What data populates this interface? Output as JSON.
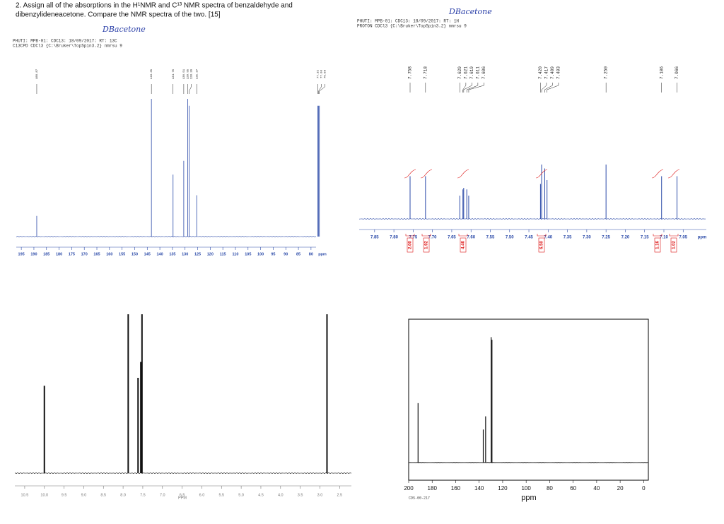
{
  "question": {
    "lines": [
      "2. Assign all of the absorptions in the H¹NMR and C¹³ NMR spectra of benzaldehyde and",
      "dibenzylideneacetone. Compare the NMR spectra of the two. [15]"
    ]
  },
  "chart_data": [
    {
      "type": "spectrum",
      "annotation": "DBacetone",
      "header_lines": [
        "PHUTI: MPB-01: CDC13: 18/09/2017: RT: 13C",
        "C13CPD CDCl3 {C:\\Bruker\\TopSpin3.2} nmrsu 9"
      ],
      "x": [
        188.87,
        143.35,
        134.76,
        130.51,
        128.95,
        128.39,
        125.37,
        77.32,
        77.0,
        76.68
      ],
      "x_labels": [
        "188.87",
        "143.35",
        "134.76",
        "130.51",
        "128.95",
        "128.39",
        "125.37",
        "77.32",
        "77.00",
        "76.68"
      ],
      "values": [
        15,
        100,
        45,
        55,
        100,
        95,
        30,
        95,
        95,
        95
      ],
      "xlim": [
        197,
        78
      ],
      "ylim": [
        0,
        100
      ],
      "xticks": [
        195,
        190,
        185,
        180,
        175,
        170,
        165,
        160,
        155,
        150,
        145,
        140,
        135,
        130,
        125,
        120,
        115,
        110,
        105,
        100,
        95,
        90,
        85,
        80
      ],
      "xlabel": "ppm"
    },
    {
      "type": "spectrum",
      "annotation": "DBacetone",
      "header_lines": [
        "PHUTI: MPB-01: CDC13: 18/09/2017: RT: 1H",
        "PROTON CDCl3 {C:\\Bruker\\TopSpin3.2} nmrsu 9"
      ],
      "x": [
        7.758,
        7.718,
        7.629,
        7.621,
        7.619,
        7.611,
        7.606,
        7.42,
        7.417,
        7.409,
        7.403,
        7.25,
        7.106,
        7.066
      ],
      "x_labels": [
        "7.758",
        "7.718",
        "7.629",
        "7.621",
        "7.619",
        "7.611",
        "7.606",
        "7.420",
        "7.417",
        "7.409",
        "7.403",
        "7.250",
        "7.106",
        "7.066"
      ],
      "values": [
        55,
        55,
        30,
        38,
        40,
        38,
        30,
        45,
        70,
        65,
        50,
        70,
        55,
        55
      ],
      "xlim": [
        7.89,
        6.99
      ],
      "ylim": [
        0,
        100
      ],
      "xticks": [
        7.85,
        {
          "value": 7.8,
          "label": "7.80"
        },
        7.75,
        {
          "value": 7.7,
          "label": "7.70"
        },
        7.65,
        {
          "value": 7.6,
          "label": "7.60"
        },
        7.55,
        {
          "value": 7.5,
          "label": "7.50"
        },
        7.45,
        {
          "value": 7.4,
          "label": "7.40"
        },
        7.35,
        {
          "value": 7.3,
          "label": "7.30"
        },
        7.25,
        {
          "value": 7.2,
          "label": "7.20"
        },
        7.15,
        {
          "value": 7.1,
          "label": "7.10"
        },
        7.05
      ],
      "xlabel": "ppm",
      "integrals": {
        "values": [
          2,
          1.92,
          4.46,
          6.5,
          1.16,
          1.02
        ],
        "value_labels": [
          "2.00",
          "1.92",
          "4.46",
          "6.50",
          "1.16",
          "1.02"
        ]
      }
    },
    {
      "type": "spectrum",
      "x": [
        10.0,
        7.87,
        7.62,
        7.55,
        7.52,
        2.82
      ],
      "values": [
        55,
        100,
        60,
        70,
        100,
        100
      ],
      "xlim": [
        10.75,
        2.2
      ],
      "ylim": [
        0,
        100
      ],
      "xticks": [
        10.5,
        {
          "value": 10,
          "label": "10.0"
        },
        9.5,
        {
          "value": 9,
          "label": "9.0"
        },
        8.5,
        {
          "value": 8,
          "label": "8.0"
        },
        7.5,
        {
          "value": 7,
          "label": "7.0"
        },
        6.5,
        {
          "value": 6,
          "label": "6.0"
        },
        5.5,
        {
          "value": 5,
          "label": "5.0"
        },
        4.5,
        {
          "value": 4,
          "label": "4.0"
        },
        3.5,
        {
          "value": 3,
          "label": "3.0"
        },
        2.5
      ],
      "xlabel": "PPM"
    },
    {
      "type": "spectrum",
      "x": [
        192.0,
        136.5,
        134.5,
        129.8,
        129.1
      ],
      "values": [
        45,
        25,
        35,
        95,
        93
      ],
      "xlim": [
        200,
        -4
      ],
      "ylim": [
        0,
        100
      ],
      "xticks": [
        200,
        180,
        160,
        140,
        120,
        100,
        80,
        60,
        40,
        20,
        0
      ],
      "xlabel": "ppm",
      "footnote": "CDS-00-217"
    }
  ]
}
